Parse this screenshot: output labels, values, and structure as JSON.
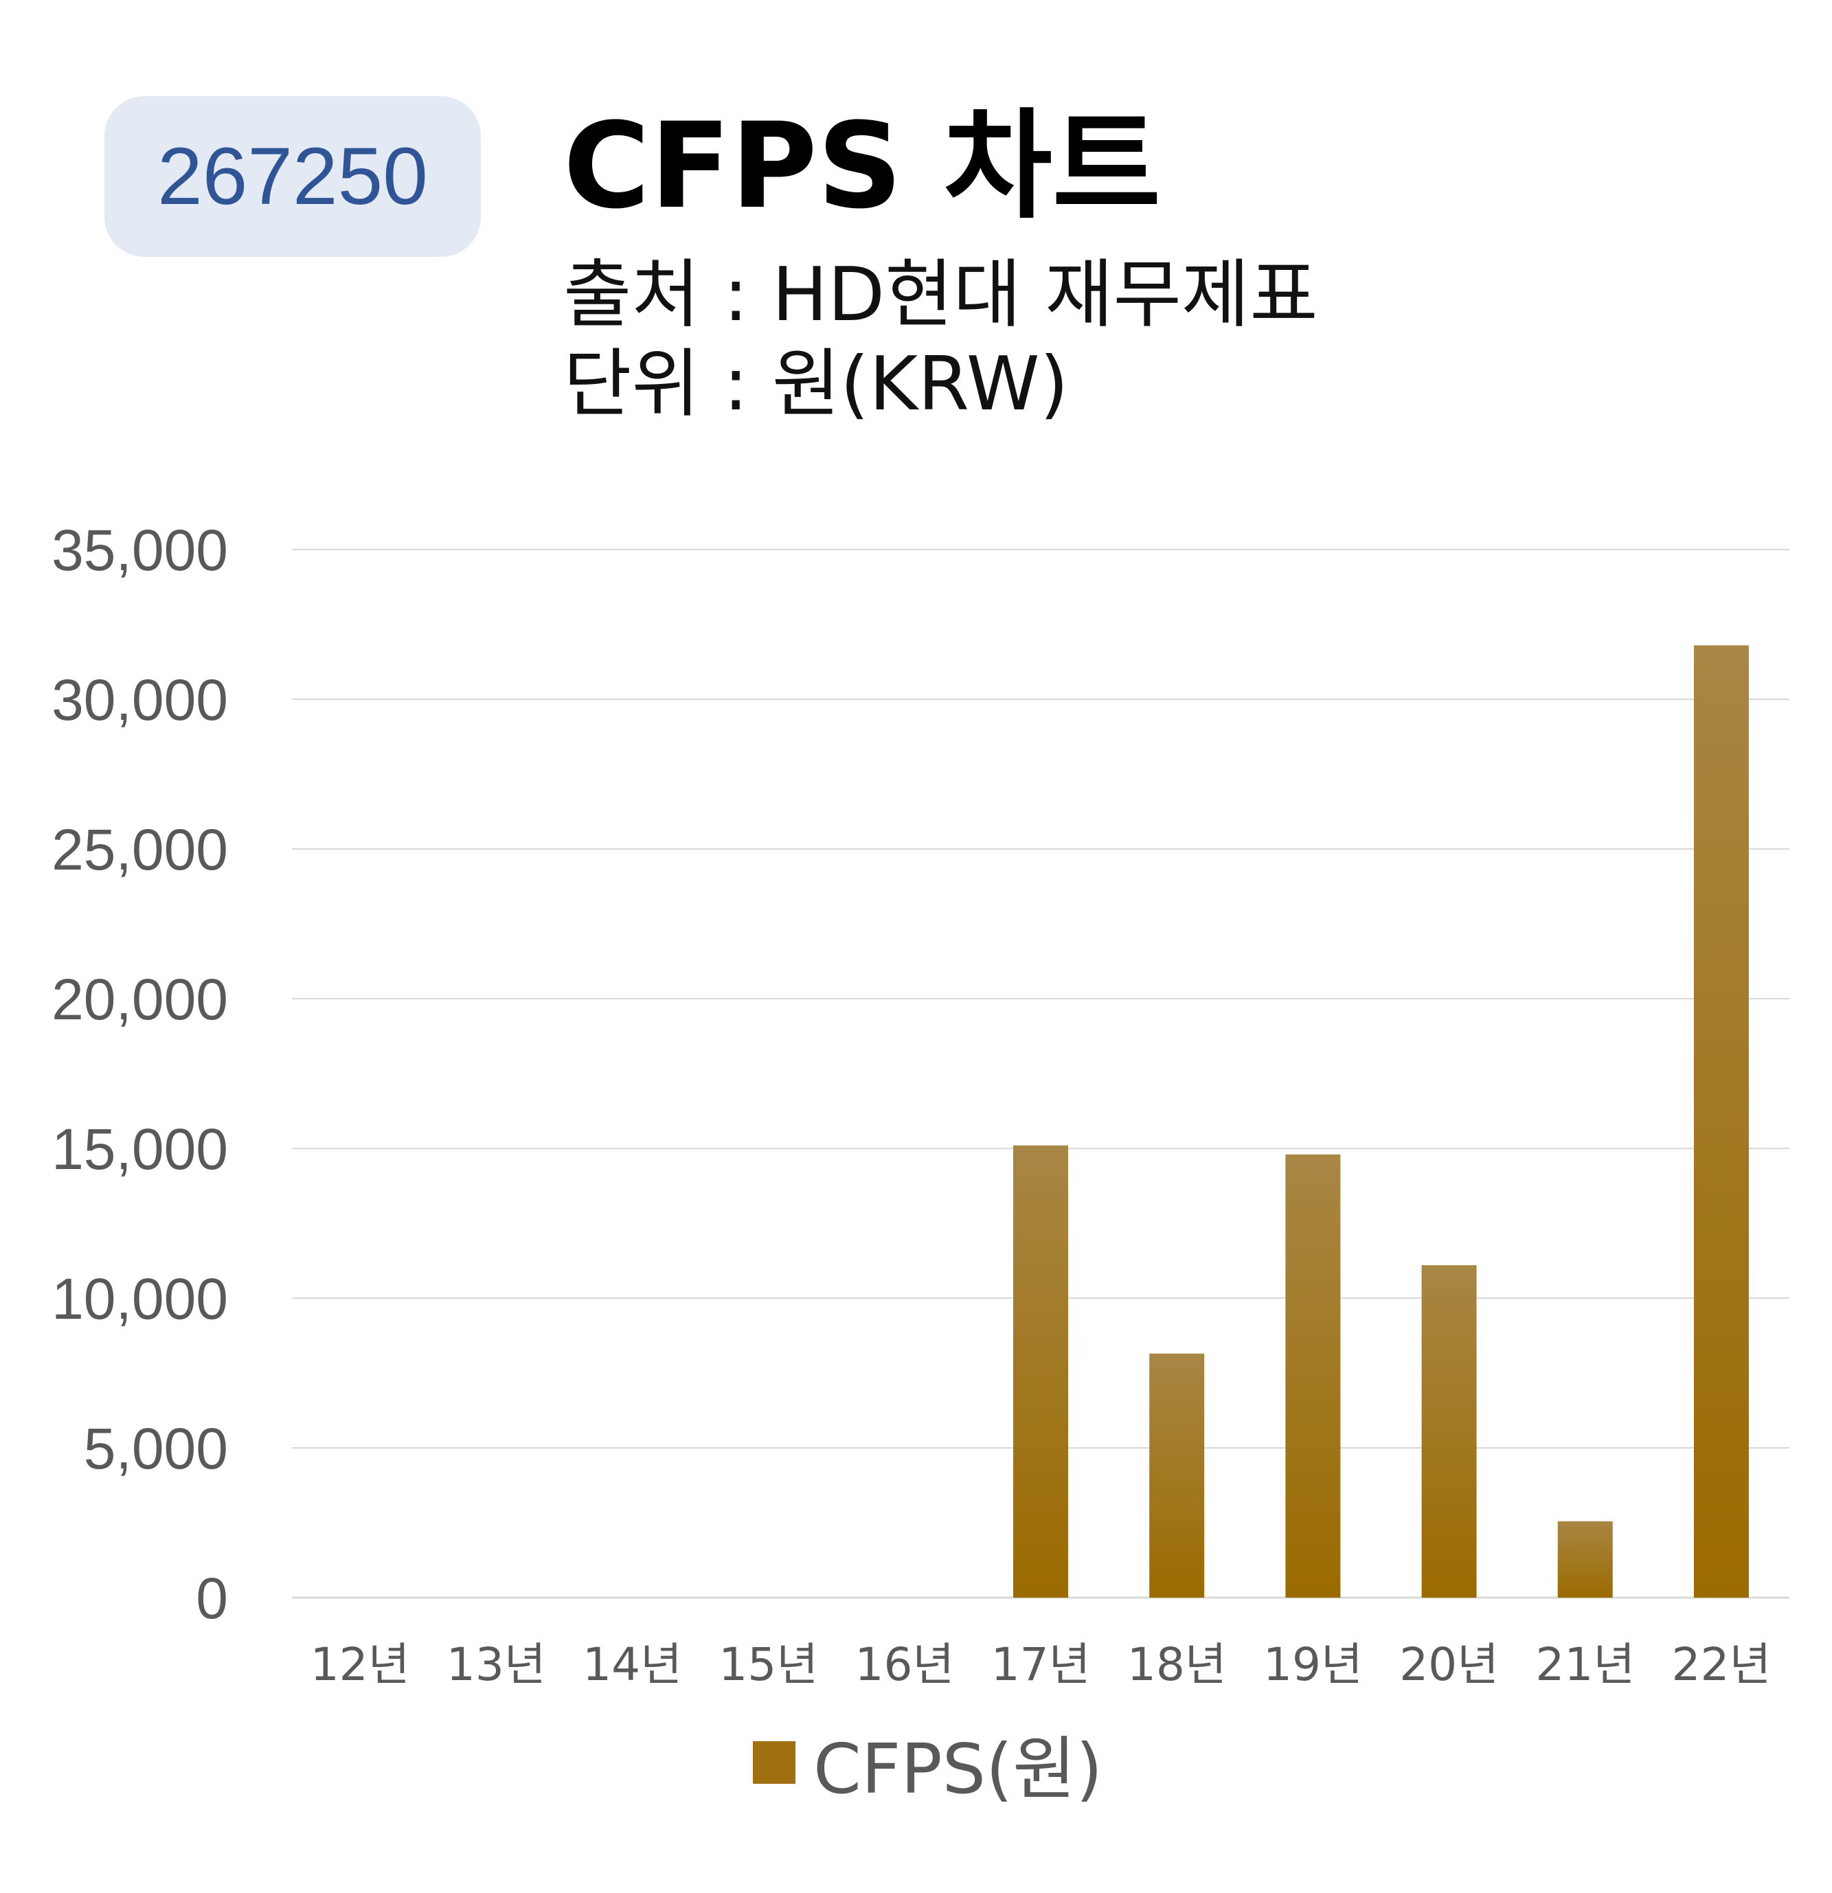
{
  "header": {
    "code": "267250",
    "title": "CFPS 차트",
    "source": "출처 : HD현대 재무제표",
    "unit": "단위 : 원(KRW)"
  },
  "colors": {
    "bar_top": "#a88644",
    "bar_bottom": "#9b6b00",
    "grid": "#d9d9d9",
    "axis_text": "#595959",
    "badge_bg": "#e4eaf4",
    "badge_text": "#2f5597"
  },
  "chart_data": {
    "type": "bar",
    "categories": [
      "12년",
      "13년",
      "14년",
      "15년",
      "16년",
      "17년",
      "18년",
      "19년",
      "20년",
      "21년",
      "22년"
    ],
    "series": [
      {
        "name": "CFPS(원)",
        "values": [
          null,
          null,
          null,
          null,
          null,
          15100,
          8150,
          14800,
          11100,
          2550,
          31800
        ]
      }
    ],
    "ylim": [
      0,
      35000
    ],
    "yticks": [
      0,
      5000,
      10000,
      15000,
      20000,
      25000,
      30000,
      35000
    ],
    "ytick_labels": [
      "0",
      "5,000",
      "10,000",
      "15,000",
      "20,000",
      "25,000",
      "30,000",
      "35,000"
    ],
    "grid": true,
    "legend_position": "bottom"
  }
}
